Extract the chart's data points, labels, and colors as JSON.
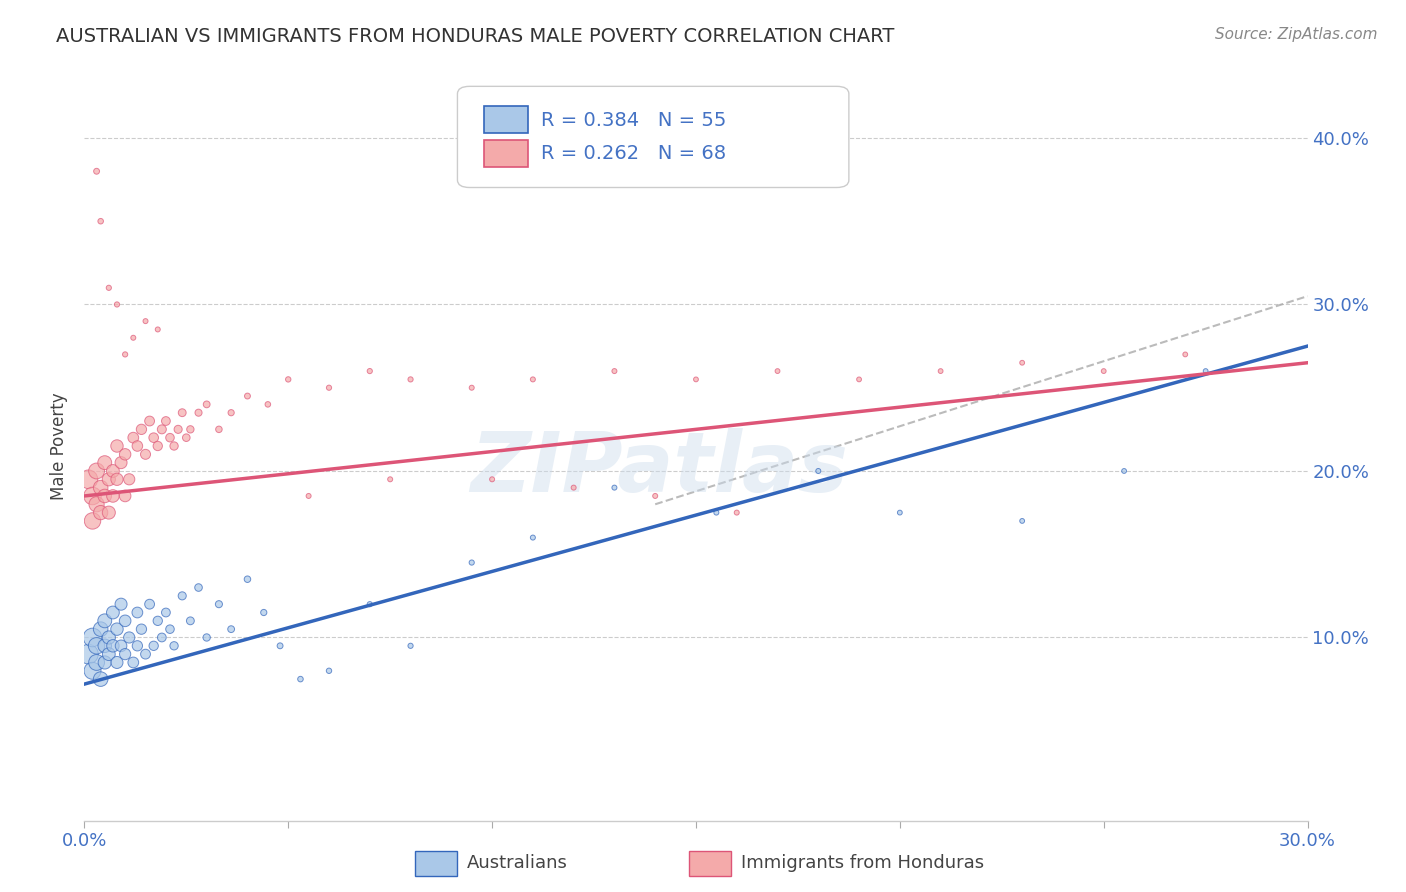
{
  "title": "AUSTRALIAN VS IMMIGRANTS FROM HONDURAS MALE POVERTY CORRELATION CHART",
  "source": "Source: ZipAtlas.com",
  "ylabel_label": "Male Poverty",
  "xlim": [
    0.0,
    0.3
  ],
  "ylim": [
    -0.01,
    0.44
  ],
  "ytick_positions": [
    0.1,
    0.2,
    0.3,
    0.4
  ],
  "ytick_labels": [
    "10.0%",
    "20.0%",
    "30.0%",
    "40.0%"
  ],
  "grid_color": "#cccccc",
  "background_color": "#ffffff",
  "title_color": "#333333",
  "axis_label_color": "#444444",
  "tick_label_color": "#4472c4",
  "watermark_text": "ZIPatlas",
  "watermark_color": "#ccdcec",
  "legend_r1": "R = 0.384",
  "legend_n1": "N = 55",
  "legend_r2": "R = 0.262",
  "legend_n2": "N = 68",
  "series1_color": "#aac8e8",
  "series2_color": "#f4aaaa",
  "line1_color": "#3366bb",
  "line2_color": "#dd5577",
  "dashed_line_color": "#aaaaaa",
  "aus_n": 55,
  "hon_n": 68,
  "aus_r": 0.384,
  "hon_r": 0.262,
  "aus_line": [
    0.0,
    0.072,
    0.3,
    0.275
  ],
  "hon_line": [
    0.0,
    0.185,
    0.3,
    0.265
  ],
  "dash_line": [
    0.14,
    0.18,
    0.3,
    0.305
  ],
  "aus_x": [
    0.001,
    0.002,
    0.002,
    0.003,
    0.003,
    0.004,
    0.004,
    0.005,
    0.005,
    0.005,
    0.006,
    0.006,
    0.007,
    0.007,
    0.008,
    0.008,
    0.009,
    0.009,
    0.01,
    0.01,
    0.011,
    0.012,
    0.013,
    0.013,
    0.014,
    0.015,
    0.016,
    0.017,
    0.018,
    0.019,
    0.02,
    0.021,
    0.022,
    0.024,
    0.026,
    0.028,
    0.03,
    0.033,
    0.036,
    0.04,
    0.044,
    0.048,
    0.053,
    0.06,
    0.07,
    0.08,
    0.095,
    0.11,
    0.13,
    0.155,
    0.18,
    0.2,
    0.23,
    0.255,
    0.275
  ],
  "aus_y": [
    0.09,
    0.1,
    0.08,
    0.095,
    0.085,
    0.075,
    0.105,
    0.11,
    0.095,
    0.085,
    0.1,
    0.09,
    0.115,
    0.095,
    0.105,
    0.085,
    0.12,
    0.095,
    0.11,
    0.09,
    0.1,
    0.085,
    0.115,
    0.095,
    0.105,
    0.09,
    0.12,
    0.095,
    0.11,
    0.1,
    0.115,
    0.105,
    0.095,
    0.125,
    0.11,
    0.13,
    0.1,
    0.12,
    0.105,
    0.135,
    0.115,
    0.095,
    0.075,
    0.08,
    0.12,
    0.095,
    0.145,
    0.16,
    0.19,
    0.175,
    0.2,
    0.175,
    0.17,
    0.2,
    0.26
  ],
  "aus_sizes": [
    200,
    180,
    150,
    140,
    130,
    110,
    110,
    100,
    95,
    90,
    90,
    85,
    85,
    80,
    80,
    75,
    75,
    70,
    70,
    65,
    65,
    60,
    60,
    55,
    55,
    50,
    50,
    45,
    45,
    40,
    40,
    38,
    36,
    34,
    32,
    30,
    28,
    26,
    24,
    22,
    20,
    18,
    16,
    15,
    14,
    14,
    14,
    13,
    13,
    13,
    13,
    12,
    12,
    12,
    12
  ],
  "hon_x": [
    0.001,
    0.002,
    0.002,
    0.003,
    0.003,
    0.004,
    0.004,
    0.005,
    0.005,
    0.006,
    0.006,
    0.007,
    0.007,
    0.008,
    0.008,
    0.009,
    0.01,
    0.01,
    0.011,
    0.012,
    0.013,
    0.014,
    0.015,
    0.016,
    0.017,
    0.018,
    0.019,
    0.02,
    0.021,
    0.022,
    0.023,
    0.024,
    0.025,
    0.026,
    0.028,
    0.03,
    0.033,
    0.036,
    0.04,
    0.045,
    0.05,
    0.06,
    0.07,
    0.08,
    0.095,
    0.11,
    0.13,
    0.15,
    0.17,
    0.19,
    0.21,
    0.23,
    0.25,
    0.27,
    0.01,
    0.012,
    0.015,
    0.018,
    0.008,
    0.006,
    0.004,
    0.003,
    0.14,
    0.16,
    0.1,
    0.12,
    0.075,
    0.055
  ],
  "hon_y": [
    0.195,
    0.185,
    0.17,
    0.2,
    0.18,
    0.19,
    0.175,
    0.205,
    0.185,
    0.195,
    0.175,
    0.2,
    0.185,
    0.215,
    0.195,
    0.205,
    0.185,
    0.21,
    0.195,
    0.22,
    0.215,
    0.225,
    0.21,
    0.23,
    0.22,
    0.215,
    0.225,
    0.23,
    0.22,
    0.215,
    0.225,
    0.235,
    0.22,
    0.225,
    0.235,
    0.24,
    0.225,
    0.235,
    0.245,
    0.24,
    0.255,
    0.25,
    0.26,
    0.255,
    0.25,
    0.255,
    0.26,
    0.255,
    0.26,
    0.255,
    0.26,
    0.265,
    0.26,
    0.27,
    0.27,
    0.28,
    0.29,
    0.285,
    0.3,
    0.31,
    0.35,
    0.38,
    0.185,
    0.175,
    0.195,
    0.19,
    0.195,
    0.185
  ],
  "hon_sizes": [
    180,
    160,
    140,
    130,
    120,
    110,
    105,
    100,
    95,
    90,
    88,
    85,
    82,
    80,
    78,
    75,
    70,
    68,
    65,
    60,
    58,
    55,
    52,
    50,
    48,
    45,
    42,
    40,
    38,
    36,
    34,
    32,
    30,
    28,
    26,
    24,
    22,
    20,
    18,
    16,
    15,
    14,
    14,
    14,
    13,
    13,
    13,
    12,
    12,
    12,
    12,
    12,
    12,
    12,
    14,
    13,
    13,
    13,
    14,
    14,
    16,
    18,
    13,
    13,
    13,
    13,
    13,
    13
  ]
}
